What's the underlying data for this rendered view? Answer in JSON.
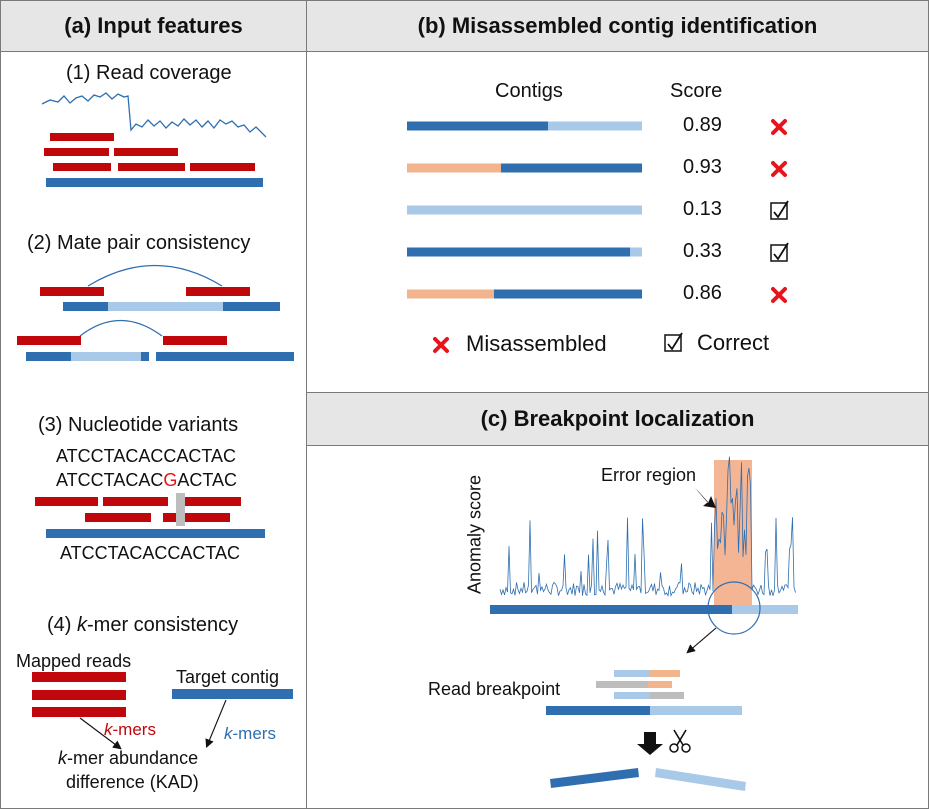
{
  "colors": {
    "red": "#c0070c",
    "dark_blue": "#2f6fb0",
    "light_blue": "#a9c9e8",
    "orange": "#f2b48c",
    "highlight": "#f2a882",
    "gray": "#bdbdbd",
    "x_mark": "#e8141b"
  },
  "panel_a": {
    "title": "(a) Input features",
    "read_coverage": {
      "label": "(1) Read coverage"
    },
    "mate_pair": {
      "label": "(2) Mate pair consistency"
    },
    "variants": {
      "label": "(3) Nucleotide variants",
      "ref_seq": "ATCCTACACCACTAC",
      "read_prefix": "ATCCTACAC",
      "read_variant": "G",
      "read_suffix": "ACTAC",
      "bottom_seq": "ATCCTACACCACTAC"
    },
    "kmer": {
      "label_italic": "k",
      "label_rest": "-mer consistency",
      "mapped_reads": "Mapped reads",
      "target_contig": "Target contig",
      "kmers_left_k": "k",
      "kmers_left_rest": "-mers",
      "kmers_right_k": "k",
      "kmers_right_rest": "-mers",
      "kad_line1_k": "k",
      "kad_line1_rest": "-mer abundance",
      "kad_line2": "difference (KAD)"
    }
  },
  "panel_b": {
    "title": "(b) Misassembled contig identification",
    "col_contigs": "Contigs",
    "col_score": "Score",
    "contigs": [
      {
        "score": "0.89",
        "status": "misassembled",
        "segments": [
          {
            "color": "dark_blue",
            "frac": 0.6
          },
          {
            "color": "light_blue",
            "frac": 0.4
          }
        ]
      },
      {
        "score": "0.93",
        "status": "misassembled",
        "segments": [
          {
            "color": "orange",
            "frac": 0.4
          },
          {
            "color": "dark_blue",
            "frac": 0.6
          }
        ]
      },
      {
        "score": "0.13",
        "status": "correct",
        "segments": [
          {
            "color": "light_blue",
            "frac": 1.0
          }
        ]
      },
      {
        "score": "0.33",
        "status": "correct",
        "segments": [
          {
            "color": "dark_blue",
            "frac": 0.95
          },
          {
            "color": "light_blue",
            "frac": 0.05
          }
        ]
      },
      {
        "score": "0.86",
        "status": "misassembled",
        "segments": [
          {
            "color": "orange",
            "frac": 0.37
          },
          {
            "color": "dark_blue",
            "frac": 0.63
          }
        ]
      }
    ],
    "legend_misassembled": "Misassembled",
    "legend_correct": "Correct"
  },
  "panel_c": {
    "title": "(c) Breakpoint localization",
    "y_label": "Anomaly score",
    "error_region": "Error region",
    "read_breakpoint": "Read breakpoint"
  }
}
